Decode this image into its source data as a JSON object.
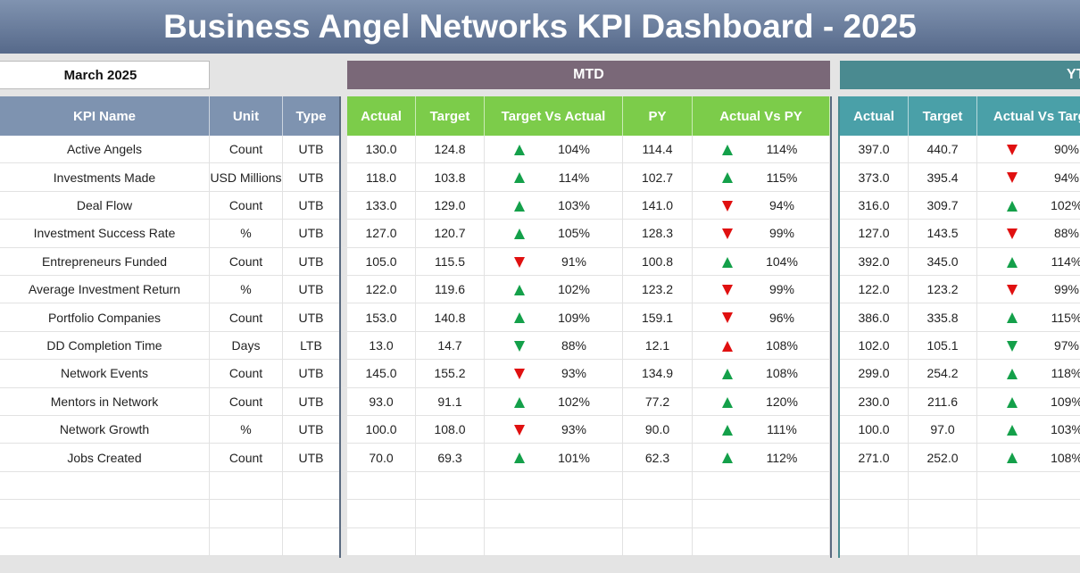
{
  "header": {
    "title": "Business Angel Networks KPI Dashboard - 2025"
  },
  "period": "March 2025",
  "sections": {
    "mtd": "MTD",
    "ytd": "YTD"
  },
  "table": {
    "columns": [
      "KPI Name",
      "Unit",
      "Type",
      "Actual",
      "Target",
      "Target Vs Actual",
      "PY",
      "Actual Vs PY",
      "Actual",
      "Target",
      "Actual Vs Target"
    ],
    "rows": [
      [
        "Active Angels",
        "Count",
        "UTB",
        "130.0",
        "124.8",
        "104%",
        "114.4",
        "114%",
        "397.0",
        "440.7",
        "90%"
      ],
      [
        "Investments Made",
        "USD Millions",
        "UTB",
        "118.0",
        "103.8",
        "114%",
        "102.7",
        "115%",
        "373.0",
        "395.4",
        "94%"
      ],
      [
        "Deal Flow",
        "Count",
        "UTB",
        "133.0",
        "129.0",
        "103%",
        "141.0",
        "94%",
        "316.0",
        "309.7",
        "102%"
      ],
      [
        "Investment Success Rate",
        "%",
        "UTB",
        "127.0",
        "120.7",
        "105%",
        "128.3",
        "99%",
        "127.0",
        "143.5",
        "88%"
      ],
      [
        "Entrepreneurs Funded",
        "Count",
        "UTB",
        "105.0",
        "115.5",
        "91%",
        "100.8",
        "104%",
        "392.0",
        "345.0",
        "114%"
      ],
      [
        "Average Investment Return",
        "%",
        "UTB",
        "122.0",
        "119.6",
        "102%",
        "123.2",
        "99%",
        "122.0",
        "123.2",
        "99%"
      ],
      [
        "Portfolio Companies",
        "Count",
        "UTB",
        "153.0",
        "140.8",
        "109%",
        "159.1",
        "96%",
        "386.0",
        "335.8",
        "115%"
      ],
      [
        "DD Completion Time",
        "Days",
        "LTB",
        "13.0",
        "14.7",
        "88%",
        "12.1",
        "108%",
        "102.0",
        "105.1",
        "97%"
      ],
      [
        "Network Events",
        "Count",
        "UTB",
        "145.0",
        "155.2",
        "93%",
        "134.9",
        "108%",
        "299.0",
        "254.2",
        "118%"
      ],
      [
        "Mentors in Network",
        "Count",
        "UTB",
        "93.0",
        "91.1",
        "102%",
        "77.2",
        "120%",
        "230.0",
        "211.6",
        "109%"
      ],
      [
        "Network Growth",
        "%",
        "UTB",
        "100.0",
        "108.0",
        "93%",
        "90.0",
        "111%",
        "100.0",
        "97.0",
        "103%"
      ],
      [
        "Jobs Created",
        "Count",
        "UTB",
        "70.0",
        "69.3",
        "101%",
        "62.3",
        "112%",
        "271.0",
        "252.0",
        "108%"
      ]
    ]
  }
}
